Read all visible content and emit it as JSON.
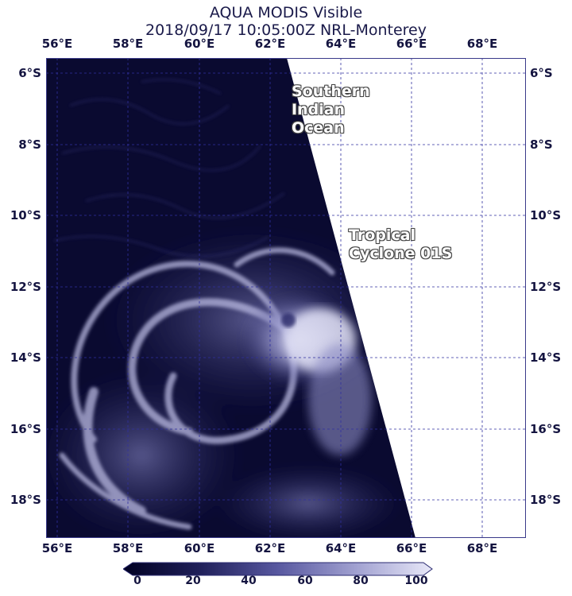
{
  "title": {
    "line1": "AQUA MODIS Visible",
    "line2": "2018/09/17 10:05:00Z NRL-Monterey"
  },
  "map": {
    "lon_labels": [
      "56°E",
      "58°E",
      "60°E",
      "62°E",
      "64°E",
      "66°E",
      "68°E"
    ],
    "lat_labels": [
      "6°S",
      "8°S",
      "10°S",
      "12°S",
      "14°S",
      "16°S",
      "18°S"
    ],
    "lon_range": [
      55.95,
      69.4
    ],
    "lat_range": [
      5.4,
      19.05
    ],
    "gridline_color": "#3030a0",
    "annotations": {
      "ocean_line1": "Southern",
      "ocean_line2": "Indian",
      "ocean_line3": "Ocean",
      "storm_line1": "Tropical",
      "storm_line2": "Cyclone 01S"
    }
  },
  "colorbar": {
    "ticks": [
      "0",
      "20",
      "40",
      "60",
      "80",
      "100"
    ],
    "colors": [
      "#000022",
      "#20205a",
      "#5858a0",
      "#a0a0d0",
      "#e8e8f8"
    ]
  }
}
